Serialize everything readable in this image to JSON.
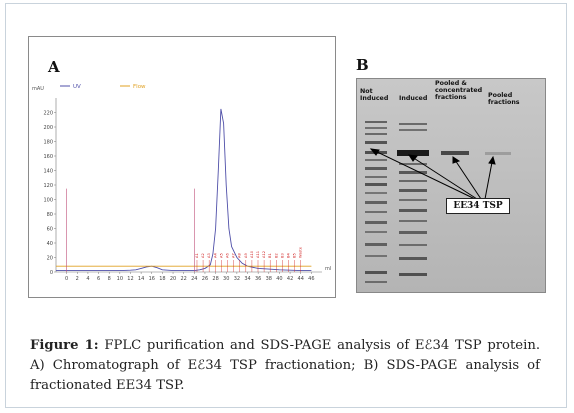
{
  "panel_a": {
    "letter": "A",
    "legend": [
      {
        "label": "UV",
        "color": "#4f4fa8"
      },
      {
        "label": "Flow",
        "color": "#e0a020"
      }
    ],
    "y_unit": "mAU",
    "x_unit": "ml"
  },
  "panel_b": {
    "letter": "B",
    "lanes": [
      {
        "line1": "Not",
        "line2": "Induced"
      },
      {
        "line1": "Induced",
        "line2": ""
      },
      {
        "line1": "Pooled &",
        "line2": "concentrated",
        "line3": "fractions"
      },
      {
        "line1": "Pooled",
        "line2": "fractions"
      }
    ],
    "band_label": "EE34 TSP"
  },
  "caption": {
    "label": "Figure 1:",
    "text": "FPLC purification and SDS-PAGE analysis of Eℰ34 TSP protein. A) Chromatograph of Eℰ34 TSP fractionation; B) SDS-PAGE analysis of fractionated EE34 TSP."
  },
  "chart_data": {
    "type": "line",
    "title": "",
    "xlabel": "ml",
    "ylabel": "mAU",
    "xlim": [
      -2,
      48
    ],
    "ylim": [
      0,
      240
    ],
    "x_ticks": [
      0,
      2,
      4,
      6,
      8,
      10,
      12,
      14,
      16,
      18,
      20,
      22,
      24,
      26,
      28,
      30,
      32,
      34,
      36,
      38,
      40,
      42,
      44,
      46
    ],
    "y_ticks": [
      0,
      20,
      40,
      60,
      80,
      100,
      120,
      140,
      160,
      180,
      200,
      220
    ],
    "series": [
      {
        "name": "UV",
        "color": "#4f4fa8",
        "x": [
          -2,
          0,
          2,
          4,
          6,
          8,
          10,
          12,
          13,
          14,
          15,
          16,
          17,
          18,
          20,
          22,
          24,
          25,
          26,
          27,
          27.5,
          28,
          28.5,
          29,
          29.5,
          30,
          30.5,
          31,
          32,
          33,
          34,
          36,
          38,
          40,
          42,
          44,
          46
        ],
        "y": [
          2,
          2,
          2,
          2,
          2,
          2,
          2,
          2.5,
          3,
          5,
          7,
          8,
          6,
          3,
          2,
          2,
          2,
          3,
          5,
          10,
          25,
          60,
          140,
          225,
          205,
          120,
          60,
          35,
          20,
          12,
          8,
          5,
          4,
          3,
          2.5,
          2,
          2
        ]
      },
      {
        "name": "Flow",
        "color": "#e0a020",
        "x": [
          -2,
          46
        ],
        "y": [
          8,
          8
        ]
      }
    ],
    "injection_marks_x": [
      0,
      24
    ],
    "fraction_labels": [
      "A1",
      "A2",
      "A3",
      "A4",
      "A5",
      "A6",
      "A7",
      "A8",
      "A9",
      "A10",
      "A11",
      "A12",
      "B1",
      "B2",
      "B3",
      "B4",
      "B5",
      "Waste"
    ]
  }
}
